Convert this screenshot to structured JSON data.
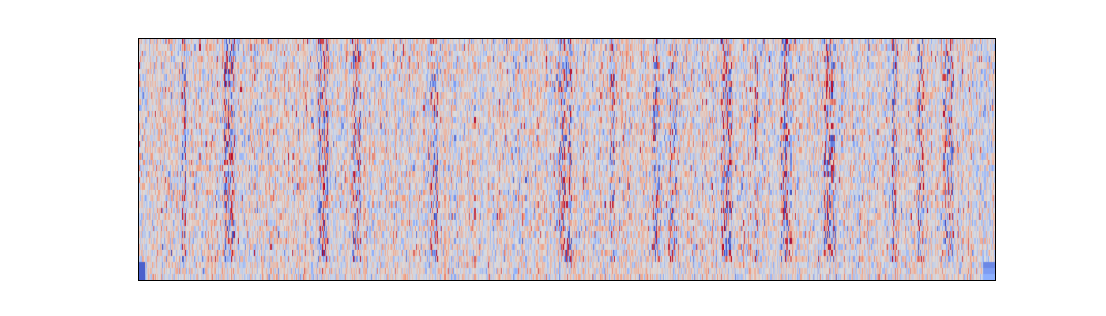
{
  "chart_data": {
    "type": "heatmap",
    "title": "",
    "xlabel": "",
    "ylabel": "",
    "x_ticks": false,
    "y_ticks": false,
    "grid": false,
    "legend": "none",
    "colormap": "coolwarm",
    "colormap_low": "#3b4cc0",
    "colormap_mid": "#dddddd",
    "colormap_high": "#b40426",
    "n_rows": 40,
    "n_columns": 1000,
    "value_range": [
      -1,
      1
    ],
    "bottom_rows_note_visible": false,
    "strong_feature_columns_fraction": [
      0.05,
      0.1,
      0.21,
      0.25,
      0.34,
      0.49,
      0.5,
      0.55,
      0.6,
      0.62,
      0.68,
      0.72,
      0.75,
      0.8,
      0.88,
      0.91,
      0.94
    ]
  }
}
